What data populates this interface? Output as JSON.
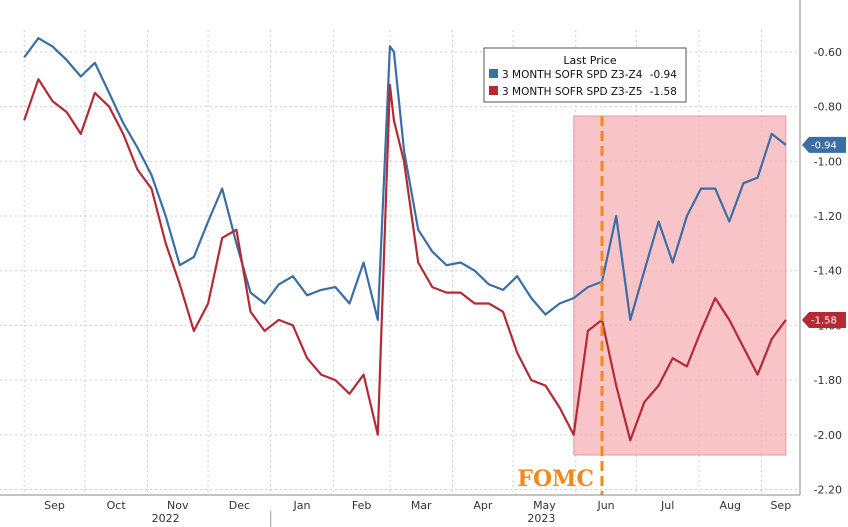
{
  "chart_data": {
    "type": "line",
    "title": "",
    "xlabel": "",
    "ylabel": "",
    "ylim": [
      -2.22,
      -0.52
    ],
    "y_ticks": [
      "-0.60",
      "-0.80",
      "-1.00",
      "-1.20",
      "-1.40",
      "-1.60",
      "-1.80",
      "-2.00",
      "-2.20"
    ],
    "x_ticks": [
      "Sep",
      "Oct",
      "Nov",
      "Dec",
      "Jan",
      "Feb",
      "Mar",
      "Apr",
      "May",
      "Jun",
      "Jul",
      "Aug",
      "Sep"
    ],
    "years": [
      "2022",
      "2023"
    ],
    "grid": true,
    "legend_title": "Last Price",
    "legend_placement": "top-right",
    "series": [
      {
        "name": "3 MONTH SOFR SPD Z3-Z4",
        "last": "-0.94",
        "color": "#3a6ea5",
        "x": [
          "2022-09-01",
          "2022-09-08",
          "2022-09-15",
          "2022-09-22",
          "2022-09-29",
          "2022-10-06",
          "2022-10-13",
          "2022-10-20",
          "2022-10-27",
          "2022-11-03",
          "2022-11-10",
          "2022-11-17",
          "2022-11-24",
          "2022-12-01",
          "2022-12-08",
          "2022-12-15",
          "2022-12-22",
          "2022-12-29",
          "2023-01-05",
          "2023-01-12",
          "2023-01-19",
          "2023-01-26",
          "2023-02-02",
          "2023-02-09",
          "2023-02-16",
          "2023-02-23",
          "2023-03-01",
          "2023-03-03",
          "2023-03-08",
          "2023-03-15",
          "2023-03-22",
          "2023-03-29",
          "2023-04-05",
          "2023-04-12",
          "2023-04-19",
          "2023-04-26",
          "2023-05-03",
          "2023-05-10",
          "2023-05-17",
          "2023-05-24",
          "2023-05-31",
          "2023-06-07",
          "2023-06-14",
          "2023-06-21",
          "2023-06-28",
          "2023-07-05",
          "2023-07-12",
          "2023-07-19",
          "2023-07-26",
          "2023-08-02",
          "2023-08-09",
          "2023-08-16",
          "2023-08-23",
          "2023-08-30",
          "2023-09-06",
          "2023-09-13"
        ],
        "values": [
          -0.62,
          -0.55,
          -0.58,
          -0.63,
          -0.69,
          -0.64,
          -0.75,
          -0.86,
          -0.95,
          -1.05,
          -1.2,
          -1.38,
          -1.35,
          -1.22,
          -1.1,
          -1.3,
          -1.48,
          -1.52,
          -1.45,
          -1.42,
          -1.49,
          -1.47,
          -1.46,
          -1.52,
          -1.37,
          -1.58,
          -0.58,
          -0.6,
          -0.96,
          -1.25,
          -1.33,
          -1.38,
          -1.37,
          -1.4,
          -1.45,
          -1.47,
          -1.42,
          -1.5,
          -1.56,
          -1.52,
          -1.5,
          -1.46,
          -1.44,
          -1.2,
          -1.58,
          -1.4,
          -1.22,
          -1.37,
          -1.2,
          -1.1,
          -1.1,
          -1.22,
          -1.08,
          -1.06,
          -0.9,
          -0.94
        ]
      },
      {
        "name": "3 MONTH SOFR SPD Z3-Z5",
        "last": "-1.58",
        "color": "#b32a35",
        "x": [
          "2022-09-01",
          "2022-09-08",
          "2022-09-15",
          "2022-09-22",
          "2022-09-29",
          "2022-10-06",
          "2022-10-13",
          "2022-10-20",
          "2022-10-27",
          "2022-11-03",
          "2022-11-10",
          "2022-11-17",
          "2022-11-24",
          "2022-12-01",
          "2022-12-08",
          "2022-12-15",
          "2022-12-22",
          "2022-12-29",
          "2023-01-05",
          "2023-01-12",
          "2023-01-19",
          "2023-01-26",
          "2023-02-02",
          "2023-02-09",
          "2023-02-16",
          "2023-02-23",
          "2023-03-01",
          "2023-03-03",
          "2023-03-08",
          "2023-03-15",
          "2023-03-22",
          "2023-03-29",
          "2023-04-05",
          "2023-04-12",
          "2023-04-19",
          "2023-04-26",
          "2023-05-03",
          "2023-05-10",
          "2023-05-17",
          "2023-05-24",
          "2023-05-31",
          "2023-06-07",
          "2023-06-14",
          "2023-06-21",
          "2023-06-28",
          "2023-07-05",
          "2023-07-12",
          "2023-07-19",
          "2023-07-26",
          "2023-08-02",
          "2023-08-09",
          "2023-08-16",
          "2023-08-23",
          "2023-08-30",
          "2023-09-06",
          "2023-09-13"
        ],
        "values": [
          -0.85,
          -0.7,
          -0.78,
          -0.82,
          -0.9,
          -0.75,
          -0.8,
          -0.9,
          -1.03,
          -1.1,
          -1.3,
          -1.45,
          -1.62,
          -1.52,
          -1.28,
          -1.25,
          -1.55,
          -1.62,
          -1.58,
          -1.6,
          -1.72,
          -1.78,
          -1.8,
          -1.85,
          -1.78,
          -2.0,
          -0.72,
          -0.85,
          -1.0,
          -1.37,
          -1.46,
          -1.48,
          -1.48,
          -1.52,
          -1.52,
          -1.55,
          -1.7,
          -1.8,
          -1.82,
          -1.9,
          -2.0,
          -1.62,
          -1.58,
          -1.82,
          -2.02,
          -1.88,
          -1.82,
          -1.72,
          -1.75,
          -1.62,
          -1.5,
          -1.58,
          -1.68,
          -1.78,
          -1.65,
          -1.58
        ]
      }
    ],
    "annotations": {
      "event_label": "FOMC",
      "event_date": "2023-06-14",
      "highlight_start": "2023-05-31",
      "highlight_end": "2023-09-13",
      "highlight_color": "#f6b5b9",
      "event_color": "#f08a1c"
    }
  }
}
